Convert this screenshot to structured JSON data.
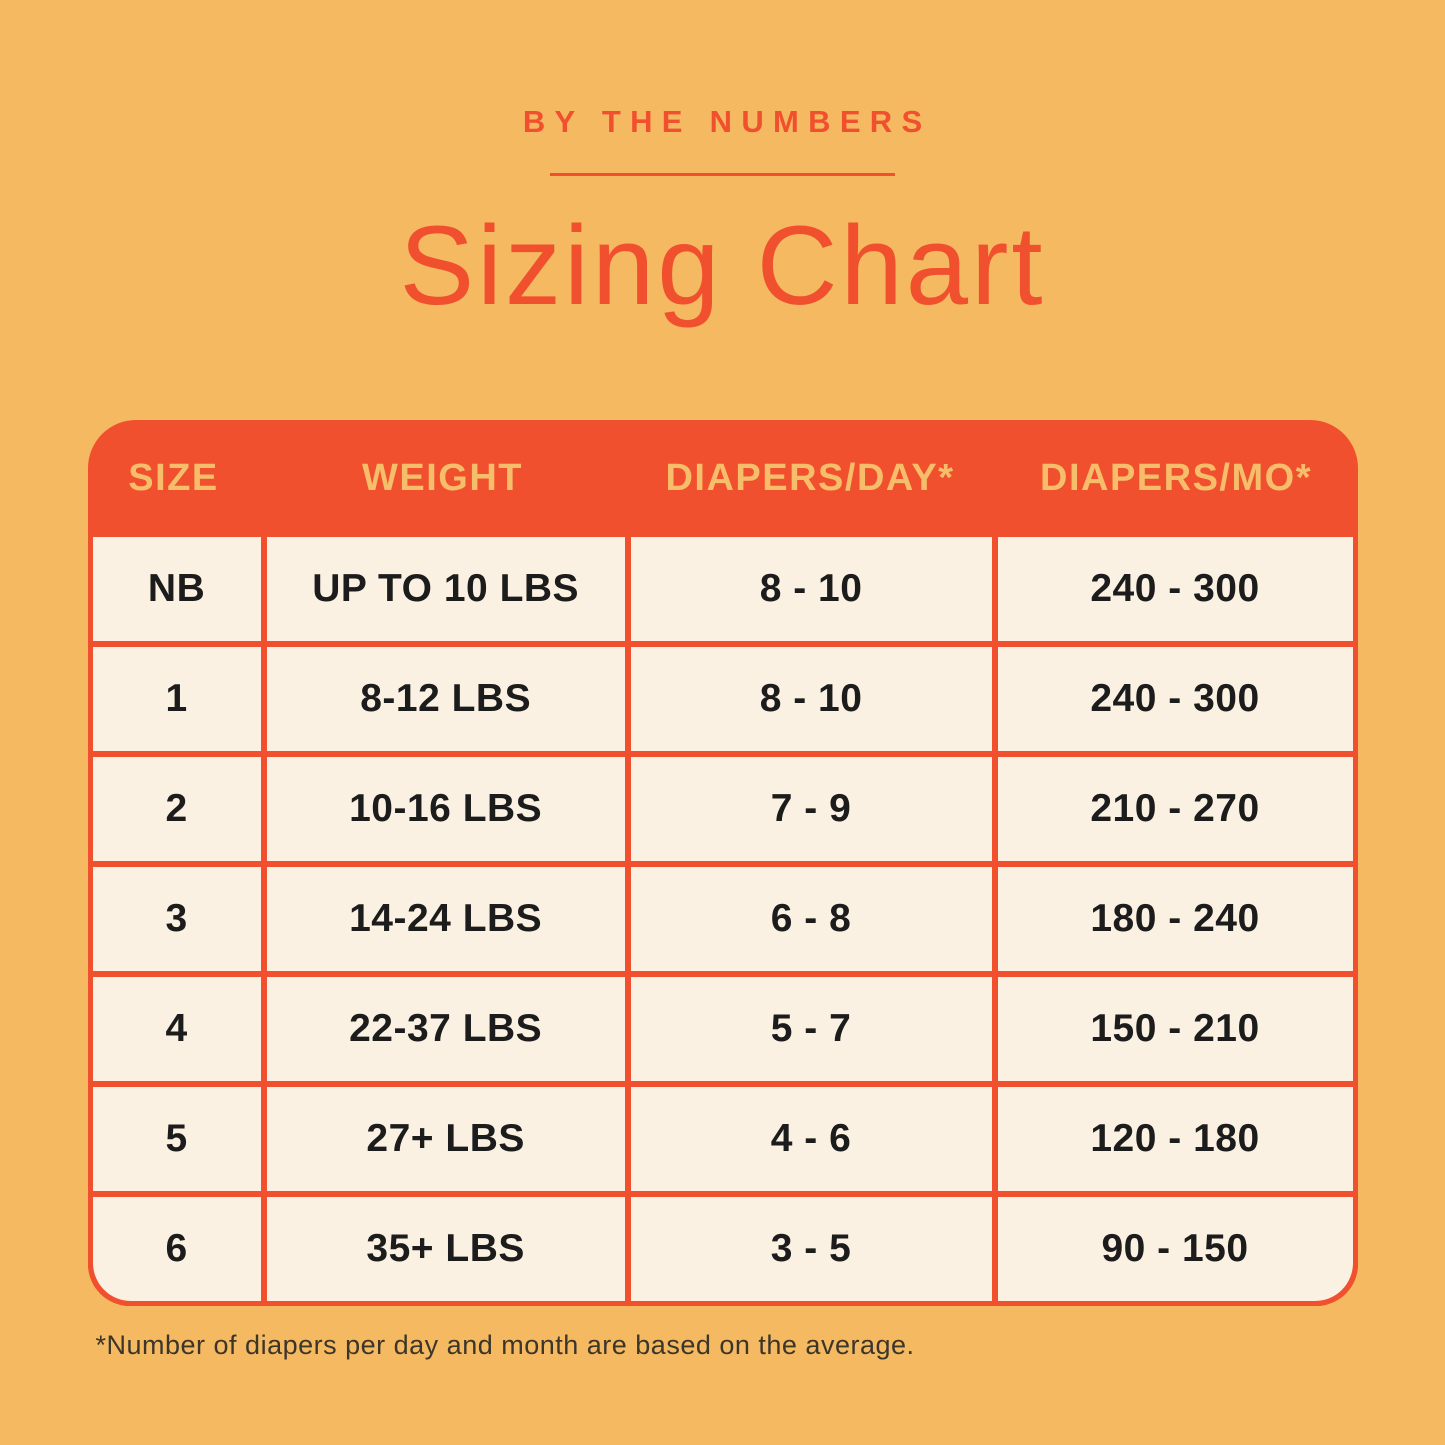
{
  "page": {
    "eyebrow": "BY THE NUMBERS",
    "title": "Sizing Chart",
    "footnote": "*Number of diapers per day and month are based on the average."
  },
  "colors": {
    "background": "#F5B961",
    "accent_red": "#F1502E",
    "cell_cream": "#FBF1E2",
    "header_text_gold": "#F6BE6B",
    "cell_text": "#1C1C1C",
    "footnote_text": "#3C362A"
  },
  "chart_data": {
    "type": "table",
    "title": "Sizing Chart",
    "subtitle": "BY THE NUMBERS",
    "columns": [
      "SIZE",
      "WEIGHT",
      "DIAPERS/DAY*",
      "DIAPERS/MO*"
    ],
    "rows": [
      [
        "NB",
        "UP TO 10 LBS",
        "8 - 10",
        "240 - 300"
      ],
      [
        "1",
        "8-12 LBS",
        "8 - 10",
        "240 - 300"
      ],
      [
        "2",
        "10-16 LBS",
        "7 - 9",
        "210 - 270"
      ],
      [
        "3",
        "14-24 LBS",
        "6 - 8",
        "180 - 240"
      ],
      [
        "4",
        "22-37 LBS",
        "5 - 7",
        "150 - 210"
      ],
      [
        "5",
        "27+ LBS",
        "4 - 6",
        "120 - 180"
      ],
      [
        "6",
        "35+ LBS",
        "3 - 5",
        "90 - 150"
      ]
    ],
    "footnote": "*Number of diapers per day and month are based on the average."
  }
}
